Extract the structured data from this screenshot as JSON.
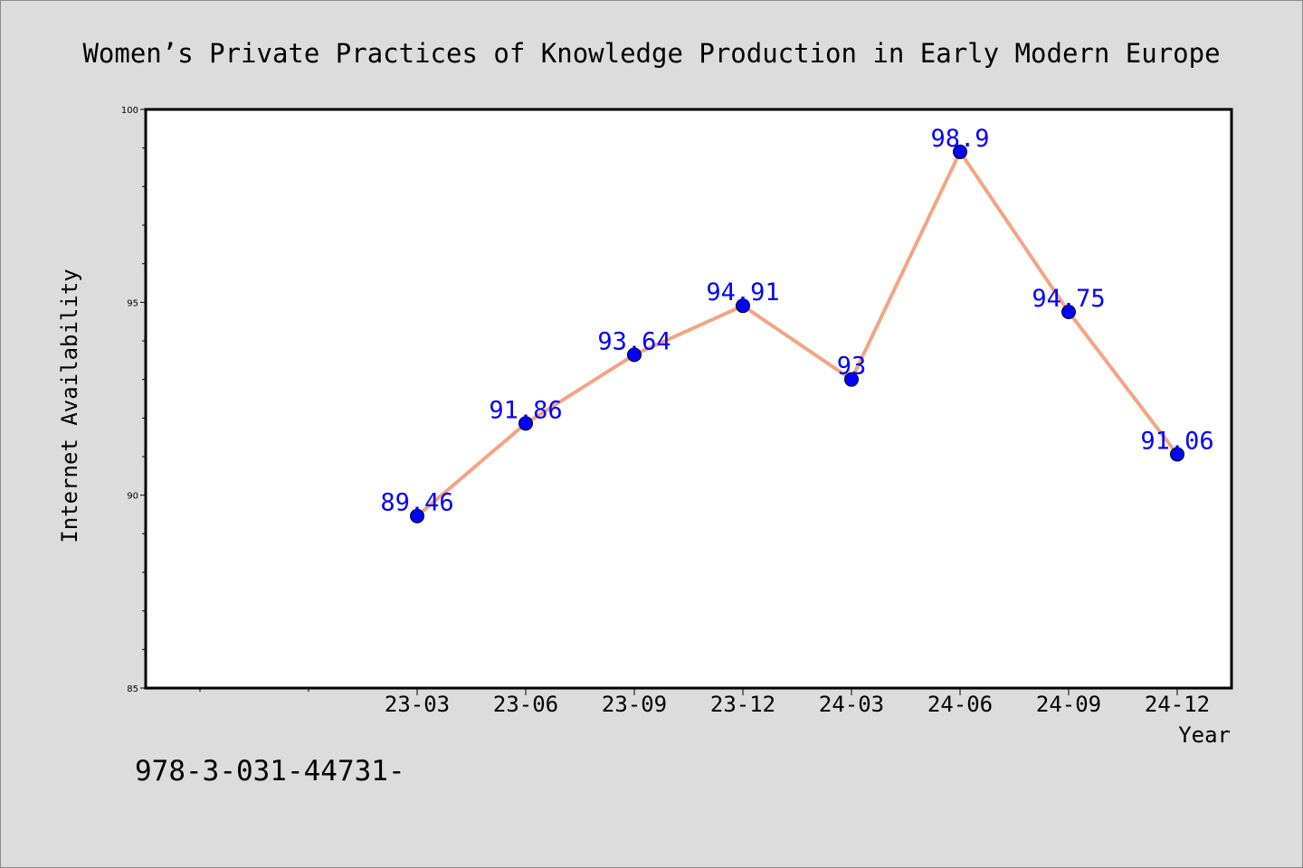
{
  "chart_data": {
    "type": "line",
    "title": "Women’s Private Practices of Knowledge Production in Early Modern Europe",
    "xlabel": "Year",
    "ylabel": "Internet Availability",
    "categories": [
      "23-03",
      "23-06",
      "23-09",
      "23-12",
      "24-03",
      "24-06",
      "24-09",
      "24-12"
    ],
    "values": [
      89.46,
      91.86,
      93.64,
      94.91,
      93,
      98.9,
      94.75,
      91.06
    ],
    "data_labels": [
      "89.46",
      "91.86",
      "93.64",
      "94.91",
      "93",
      "98.9",
      "94.75",
      "91.06"
    ],
    "ylim": [
      85,
      100
    ],
    "yticks": [
      "85",
      "90",
      "95",
      "100"
    ],
    "grid": false,
    "line_color": "#f4a582",
    "marker_color": "#0000ff",
    "label_color": "#0000ff"
  },
  "footnote": "978-3-031-44731-"
}
